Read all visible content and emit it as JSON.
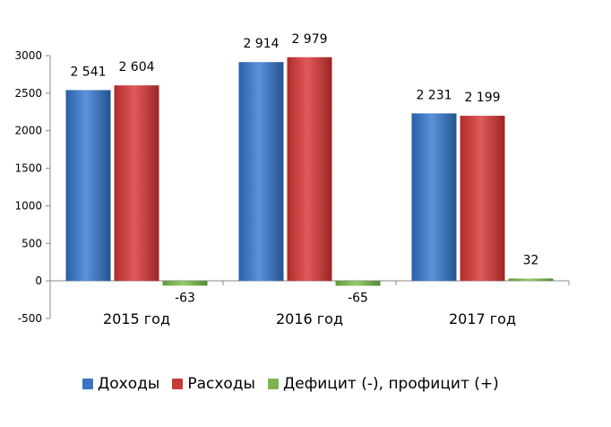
{
  "chart_data": {
    "type": "bar",
    "categories": [
      "2015 год",
      "2016 год",
      "2017 год"
    ],
    "series": [
      {
        "name": "Доходы",
        "values": [
          2541,
          2914,
          2231
        ],
        "labels": [
          "2 541",
          "2 914",
          "2 231"
        ],
        "color": "#3b74c2"
      },
      {
        "name": "Расходы",
        "values": [
          2604,
          2979,
          2199
        ],
        "labels": [
          "2 604",
          "2 979",
          "2 199"
        ],
        "color": "#c8393a"
      },
      {
        "name": "Дефицит (-), профицит (+)",
        "values": [
          -63,
          -65,
          32
        ],
        "labels": [
          "-63",
          "-65",
          "32"
        ],
        "color": "#7cb450"
      }
    ],
    "y_ticks": [
      "3000",
      "2500",
      "2000",
      "1500",
      "1000",
      "500",
      "0",
      "-500"
    ],
    "ylim": [
      -500,
      3000
    ],
    "grid": false,
    "legend_position": "bottom"
  }
}
